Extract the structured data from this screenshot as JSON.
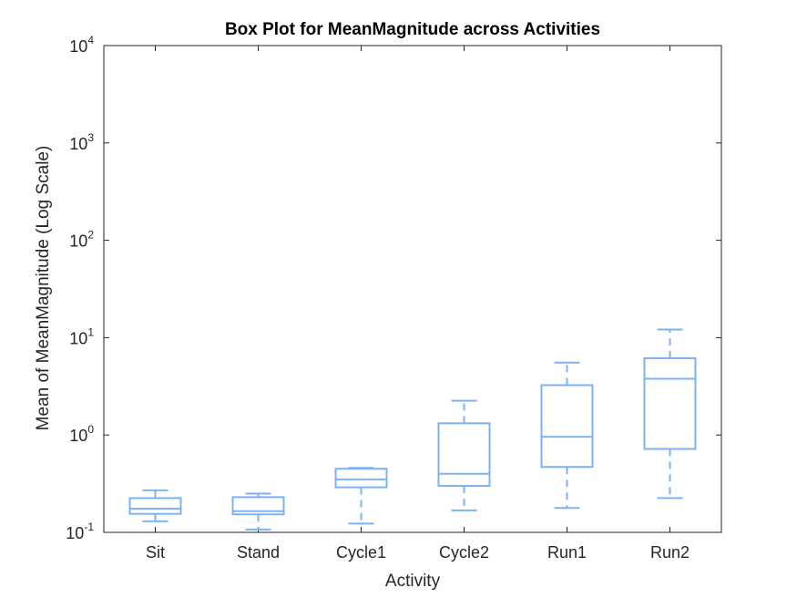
{
  "chart_data": {
    "type": "box",
    "title": "Box Plot for MeanMagnitude across Activities",
    "xlabel": "Activity",
    "ylabel": "Mean of MeanMagnitude (Log Scale)",
    "yscale": "log",
    "ylim": [
      0.1,
      10000
    ],
    "yticks": [
      {
        "base": "10",
        "exp": "-1",
        "value": 0.1
      },
      {
        "base": "10",
        "exp": "0",
        "value": 1
      },
      {
        "base": "10",
        "exp": "1",
        "value": 10
      },
      {
        "base": "10",
        "exp": "2",
        "value": 100
      },
      {
        "base": "10",
        "exp": "3",
        "value": 1000
      },
      {
        "base": "10",
        "exp": "4",
        "value": 10000
      }
    ],
    "categories": [
      "Sit",
      "Stand",
      "Cycle1",
      "Cycle2",
      "Run1",
      "Run2"
    ],
    "boxes": [
      {
        "category": "Sit",
        "whisker_low": 0.13,
        "q1": 0.155,
        "median": 0.175,
        "q3": 0.225,
        "whisker_high": 0.27
      },
      {
        "category": "Stand",
        "whisker_low": 0.107,
        "q1": 0.153,
        "median": 0.165,
        "q3": 0.23,
        "whisker_high": 0.25
      },
      {
        "category": "Cycle1",
        "whisker_low": 0.123,
        "q1": 0.29,
        "median": 0.35,
        "q3": 0.45,
        "whisker_high": 0.46
      },
      {
        "category": "Cycle2",
        "whisker_low": 0.168,
        "q1": 0.3,
        "median": 0.4,
        "q3": 1.32,
        "whisker_high": 2.25
      },
      {
        "category": "Run1",
        "whisker_low": 0.178,
        "q1": 0.47,
        "median": 0.96,
        "q3": 3.25,
        "whisker_high": 5.55
      },
      {
        "category": "Run2",
        "whisker_low": 0.225,
        "q1": 0.72,
        "median": 3.78,
        "q3": 6.15,
        "whisker_high": 12.1
      }
    ],
    "box_color": "#7EB2F4",
    "axis_color": "#262626",
    "grid": false,
    "legend": "none"
  }
}
